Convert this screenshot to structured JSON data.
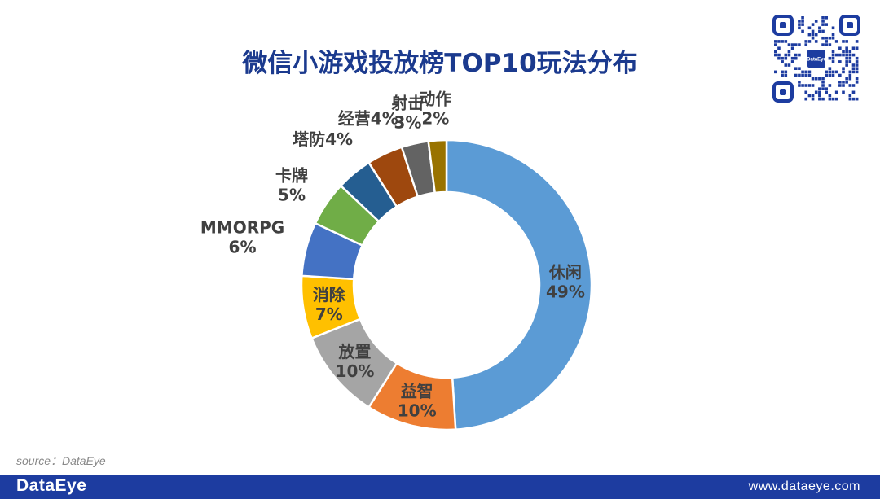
{
  "header": {
    "title": "微信小游戏投放榜TOP10玩法分布"
  },
  "qr": {
    "logo_text": "DataEye"
  },
  "chart_data": {
    "type": "pie",
    "variant": "donut",
    "title": "微信小游戏投放榜TOP10玩法分布",
    "categories": [
      "休闲",
      "益智",
      "放置",
      "消除",
      "MMORPG",
      "卡牌",
      "塔防",
      "经营",
      "射击",
      "动作"
    ],
    "values": [
      49,
      10,
      10,
      7,
      6,
      5,
      4,
      4,
      3,
      2
    ],
    "labels": [
      "49%",
      "10%",
      "10%",
      "7%",
      "6%",
      "5%",
      "4%",
      "4%",
      "3%",
      "2%"
    ],
    "colors": [
      "#5b9bd5",
      "#ed7d31",
      "#a5a5a5",
      "#ffc000",
      "#4472c4",
      "#70ad47",
      "#255e91",
      "#9e480e",
      "#636363",
      "#997300"
    ]
  },
  "footer": {
    "source": "source：DataEye",
    "brand": "DataEye",
    "website": "www.dataeye.com"
  }
}
